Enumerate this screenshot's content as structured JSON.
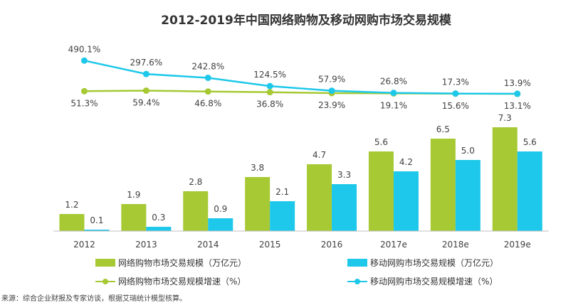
{
  "chart_data": {
    "type": "bar",
    "title": "2012-2019年中国网络购物及移动网购市场交易规模",
    "categories": [
      "2012",
      "2013",
      "2014",
      "2015",
      "2016",
      "2017e",
      "2018e",
      "2019e"
    ],
    "bar_series": [
      {
        "name": "网络购物市场交易规模（万亿元）",
        "color": "#a6c934",
        "values": [
          1.2,
          1.9,
          2.8,
          3.8,
          4.7,
          5.6,
          6.5,
          7.3
        ],
        "labels": [
          "1.2",
          "1.9",
          "2.8",
          "3.8",
          "4.7",
          "5.6",
          "6.5",
          "7.3"
        ]
      },
      {
        "name": "移动网购市场交易规模（万亿元）",
        "color": "#1ec8ea",
        "values": [
          0.1,
          0.3,
          0.9,
          2.1,
          3.3,
          4.2,
          5.0,
          5.6
        ],
        "labels": [
          "0.1",
          "0.3",
          "0.9",
          "2.1",
          "3.3",
          "4.2",
          "5.0",
          "5.6"
        ]
      }
    ],
    "line_series": [
      {
        "name": "网络购物市场交易规模增速（%）",
        "color": "#a6c934",
        "values": [
          51.3,
          59.4,
          46.8,
          36.8,
          23.9,
          19.1,
          15.6,
          13.1
        ],
        "labels": [
          "51.3%",
          "59.4%",
          "46.8%",
          "36.8%",
          "23.9%",
          "19.1%",
          "15.6%",
          "13.1%"
        ]
      },
      {
        "name": "移动网购市场交易规模增速（%）",
        "color": "#1ec8ea",
        "values": [
          490.1,
          297.6,
          242.8,
          124.5,
          57.9,
          26.8,
          17.3,
          13.9
        ],
        "labels": [
          "490.1%",
          "297.6%",
          "242.8%",
          "124.5%",
          "57.9%",
          "26.8%",
          "17.3%",
          "13.9%"
        ]
      }
    ],
    "grid": false,
    "legend_position": "bottom"
  },
  "source": "来源：综合企业财报及专家访谈，根据艾瑞统计模型核算。"
}
